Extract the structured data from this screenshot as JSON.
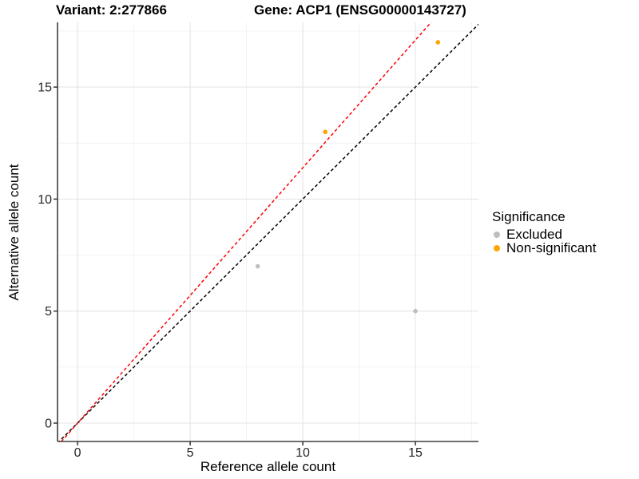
{
  "header": {
    "variant_title": "Variant: 2:277866",
    "gene_title": "Gene: ACP1 (ENSG00000143727)"
  },
  "chart_data": {
    "type": "scatter",
    "xlabel": "Reference allele count",
    "ylabel": "Alternative allele count",
    "xlim": [
      -0.89,
      17.8
    ],
    "ylim": [
      -0.82,
      17.89
    ],
    "x_major_ticks": [
      0,
      5,
      10,
      15
    ],
    "y_major_ticks": [
      0,
      5,
      10,
      15
    ],
    "x_minor_gridlines": [
      2.5,
      7.5,
      12.5,
      17.5
    ],
    "y_minor_gridlines": [
      2.5,
      7.5,
      12.5,
      17.5
    ],
    "grid": true,
    "legend": {
      "title": "Significance",
      "position": "right"
    },
    "series": [
      {
        "name": "Excluded",
        "color": "#bebebe",
        "points": [
          {
            "x": 8,
            "y": 7
          },
          {
            "x": 15,
            "y": 5
          }
        ]
      },
      {
        "name": "Non-significant",
        "color": "#ffa500",
        "points": [
          {
            "x": 11,
            "y": 13
          },
          {
            "x": 16,
            "y": 17
          }
        ]
      }
    ],
    "reference_lines": [
      {
        "name": "identity",
        "style": "dashed",
        "color": "#000000",
        "slope": 1.0,
        "intercept": 0
      },
      {
        "name": "expected-ratio",
        "style": "dashed",
        "color": "#ff0000",
        "slope": 1.14,
        "intercept": 0
      }
    ],
    "colors": {
      "major_grid": "#e5e5e5",
      "minor_grid": "#f2f2f2",
      "axis_line": "#3f3f3f",
      "tick_mark": "#333333",
      "tick_label": "#262626"
    }
  }
}
